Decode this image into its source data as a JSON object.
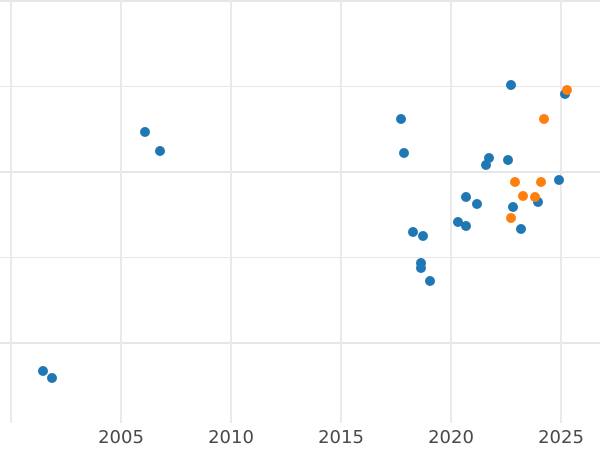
{
  "figure": {
    "title": "",
    "background_color": "#ffffff",
    "grid_color": "#e7e7e7",
    "tick_label_color": "#4a4a4a"
  },
  "chart_data": {
    "type": "scatter",
    "title": "",
    "xlabel": "",
    "ylabel": "",
    "grid": true,
    "legend": false,
    "x_axis": {
      "tick_labels": [
        "2005",
        "2010",
        "2015",
        "2020",
        "2025"
      ],
      "tick_years": [
        2005,
        2010,
        2015,
        2020,
        2025
      ],
      "gridline_years": [
        2000,
        2005,
        2010,
        2015,
        2020,
        2025
      ],
      "visible_range": [
        1999.5,
        2026.8
      ]
    },
    "y_axis": {
      "tick_labels": [],
      "tick_labels_visible": false,
      "unit": "unlabeled gridline units (y-axis labels cropped out of view)",
      "gridline_values": [
        1,
        2,
        3,
        4,
        5
      ],
      "visible_range": [
        0.1,
        5.0
      ]
    },
    "series": [
      {
        "name": "blue",
        "color": "#1f77b4",
        "marker": "circle",
        "points": [
          [
            2001.45,
            0.67
          ],
          [
            2001.86,
            0.59
          ],
          [
            2006.09,
            3.47
          ],
          [
            2006.77,
            3.25
          ],
          [
            2017.73,
            3.62
          ],
          [
            2017.86,
            3.22
          ],
          [
            2018.27,
            2.3
          ],
          [
            2018.73,
            2.25
          ],
          [
            2018.64,
            1.94
          ],
          [
            2018.64,
            1.88
          ],
          [
            2019.05,
            1.73
          ],
          [
            2020.32,
            2.42
          ],
          [
            2020.68,
            2.37
          ],
          [
            2020.68,
            2.71
          ],
          [
            2021.18,
            2.63
          ],
          [
            2021.59,
            3.08
          ],
          [
            2021.73,
            3.16
          ],
          [
            2022.59,
            3.14
          ],
          [
            2022.73,
            4.02
          ],
          [
            2022.82,
            2.59
          ],
          [
            2023.18,
            2.33
          ],
          [
            2023.95,
            2.65
          ],
          [
            2024.91,
            2.91
          ],
          [
            2025.18,
            3.91
          ]
        ]
      },
      {
        "name": "orange",
        "color": "#ff7f0e",
        "marker": "circle",
        "points": [
          [
            2022.73,
            2.46
          ],
          [
            2022.91,
            2.88
          ],
          [
            2023.27,
            2.72
          ],
          [
            2023.82,
            2.71
          ],
          [
            2024.09,
            2.88
          ],
          [
            2024.23,
            3.62
          ],
          [
            2025.27,
            3.96
          ]
        ]
      }
    ]
  }
}
